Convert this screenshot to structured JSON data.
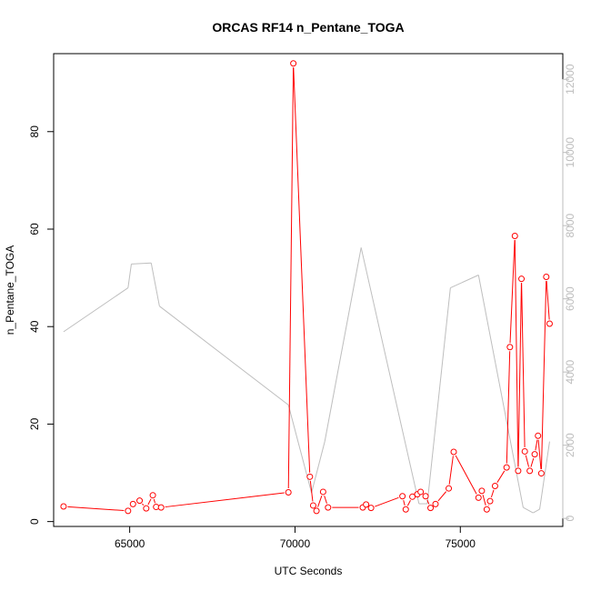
{
  "chart_data": {
    "type": "line",
    "title": "ORCAS RF14 n_Pentane_TOGA",
    "xlabel": "UTC Seconds",
    "ylabel": "n_Pentane_TOGA",
    "xlim": [
      62700,
      78100
    ],
    "ylim": [
      -1,
      96
    ],
    "y2lim": [
      -220,
      12700
    ],
    "x_ticks": [
      65000,
      70000,
      75000
    ],
    "y_ticks": [
      0,
      20,
      40,
      60,
      80
    ],
    "y2_ticks": [
      0,
      2000,
      4000,
      6000,
      8000,
      10000,
      12000
    ],
    "grid": false,
    "legend": "none",
    "colors": {
      "primary": "#ff0000",
      "secondary": "#bebebe"
    },
    "series": [
      {
        "color": "#ff0000",
        "style": "line+points",
        "axis": "left",
        "x": [
          63000,
          64950,
          65100,
          65300,
          65500,
          65700,
          65800,
          65950,
          69800,
          69950,
          70450,
          70550,
          70650,
          70850,
          71000,
          72050,
          72150,
          72300,
          73250,
          73350,
          73550,
          73700,
          73800,
          73950,
          74100,
          74250,
          74650,
          74800,
          75550,
          75650,
          75800,
          75900,
          76050,
          76400,
          76500,
          76650,
          76750,
          76850,
          76950,
          77100,
          77250,
          77350,
          77450,
          77600,
          77700
        ],
        "y": [
          3.1,
          2.2,
          3.6,
          4.3,
          2.7,
          5.4,
          3.0,
          2.9,
          6.0,
          94.0,
          9.2,
          3.3,
          2.2,
          6.1,
          2.9,
          2.9,
          3.5,
          2.8,
          5.2,
          2.5,
          5.1,
          5.6,
          6.1,
          5.2,
          2.8,
          3.6,
          6.8,
          14.3,
          4.9,
          6.3,
          2.5,
          4.2,
          7.3,
          11.1,
          35.8,
          58.6,
          10.4,
          49.8,
          14.4,
          10.4,
          13.8,
          17.6,
          9.9,
          50.2,
          40.6
        ]
      },
      {
        "color": "#bebebe",
        "style": "line",
        "axis": "right",
        "x": [
          63000,
          64950,
          65050,
          65650,
          65900,
          69800,
          70500,
          70900,
          72000,
          73750,
          74000,
          74700,
          75550,
          76900,
          77200,
          77400,
          77700
        ],
        "y": [
          5100,
          6300,
          6950,
          6980,
          5800,
          3100,
          700,
          2100,
          7400,
          400,
          400,
          6300,
          6650,
          300,
          150,
          250,
          2100
        ]
      }
    ]
  }
}
